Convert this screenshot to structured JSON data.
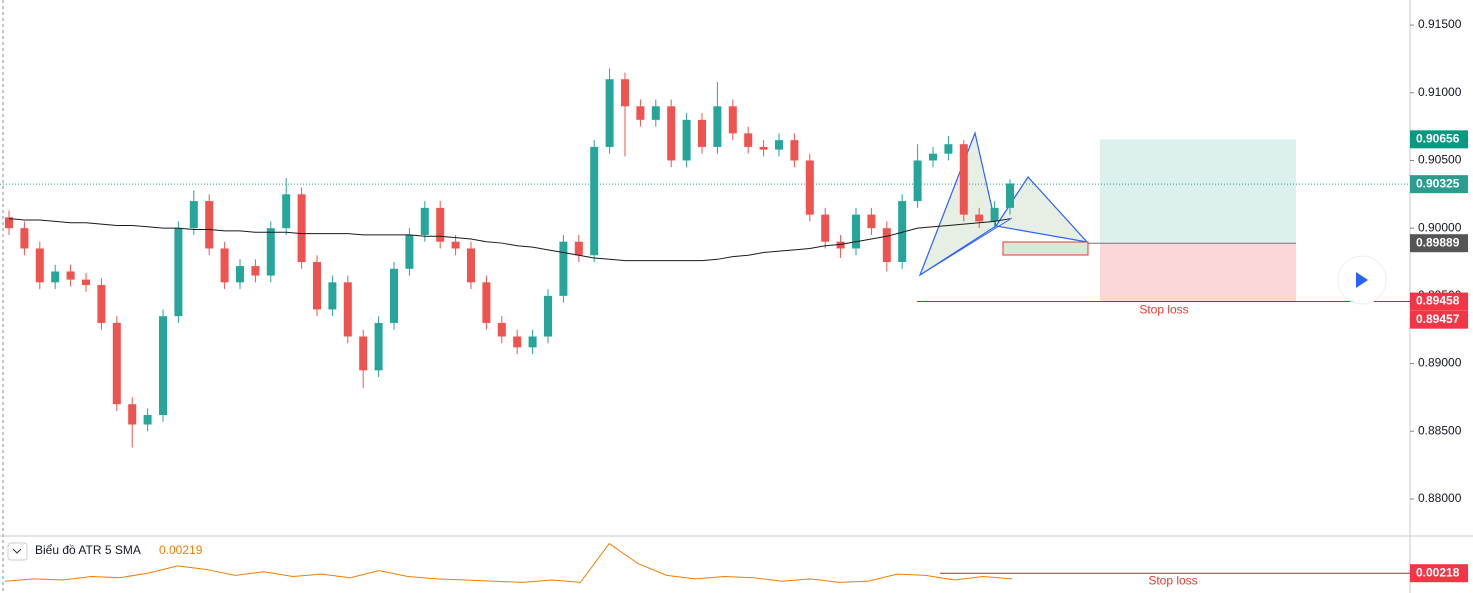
{
  "chart_data": {
    "type": "candlestick",
    "open": [
      0.9008,
      0.9,
      0.8985,
      0.896,
      0.8968,
      0.8962,
      0.8958,
      0.893,
      0.887,
      0.8855,
      0.8862,
      0.8935,
      0.9,
      0.902,
      0.8985,
      0.896,
      0.8972,
      0.8965,
      0.9,
      0.9025,
      0.8975,
      0.894,
      0.896,
      0.892,
      0.8895,
      0.893,
      0.897,
      0.8995,
      0.9015,
      0.899,
      0.8985,
      0.896,
      0.893,
      0.892,
      0.8912,
      0.892,
      0.895,
      0.899,
      0.898,
      0.906,
      0.911,
      0.909,
      0.908,
      0.909,
      0.905,
      0.908,
      0.906,
      0.909,
      0.907,
      0.906,
      0.9058,
      0.9065,
      0.905,
      0.901,
      0.899,
      0.8985,
      0.901,
      0.9,
      0.8975,
      0.902,
      0.905,
      0.9055,
      0.9062,
      0.901,
      0.9005,
      0.9015
    ],
    "high": [
      0.9013,
      0.9005,
      0.899,
      0.8973,
      0.8973,
      0.8967,
      0.8963,
      0.8935,
      0.8875,
      0.8867,
      0.894,
      0.9005,
      0.9028,
      0.9025,
      0.899,
      0.8977,
      0.8977,
      0.9005,
      0.9037,
      0.903,
      0.898,
      0.8965,
      0.8965,
      0.8925,
      0.8935,
      0.8975,
      0.9,
      0.902,
      0.902,
      0.8995,
      0.899,
      0.8965,
      0.8935,
      0.8925,
      0.8925,
      0.8955,
      0.8995,
      0.8995,
      0.9065,
      0.9118,
      0.9115,
      0.9095,
      0.9095,
      0.9095,
      0.9085,
      0.9085,
      0.9108,
      0.9095,
      0.9075,
      0.9065,
      0.907,
      0.907,
      0.9055,
      0.9015,
      0.8995,
      0.9015,
      0.9015,
      0.9005,
      0.9025,
      0.9062,
      0.906,
      0.9068,
      0.9065,
      0.9015,
      0.902,
      0.9036
    ],
    "low": [
      0.8995,
      0.898,
      0.8955,
      0.8955,
      0.8957,
      0.8953,
      0.8925,
      0.8865,
      0.8838,
      0.885,
      0.8857,
      0.893,
      0.8995,
      0.898,
      0.8955,
      0.8955,
      0.896,
      0.896,
      0.8995,
      0.897,
      0.8935,
      0.8935,
      0.8915,
      0.8882,
      0.889,
      0.8925,
      0.8965,
      0.899,
      0.8985,
      0.898,
      0.8955,
      0.8925,
      0.8915,
      0.8907,
      0.8907,
      0.8915,
      0.8945,
      0.8975,
      0.8975,
      0.9055,
      0.9053,
      0.9075,
      0.9075,
      0.9045,
      0.9045,
      0.9055,
      0.9055,
      0.9065,
      0.9055,
      0.9053,
      0.9053,
      0.9045,
      0.9005,
      0.8985,
      0.8978,
      0.898,
      0.8995,
      0.8968,
      0.897,
      0.9015,
      0.9045,
      0.905,
      0.9005,
      0.9,
      0.9,
      0.901
    ],
    "close": [
      0.9,
      0.8985,
      0.896,
      0.8968,
      0.8962,
      0.8958,
      0.893,
      0.887,
      0.8855,
      0.8862,
      0.8935,
      0.9,
      0.902,
      0.8985,
      0.896,
      0.8972,
      0.8965,
      0.9,
      0.9025,
      0.8975,
      0.894,
      0.896,
      0.892,
      0.8895,
      0.893,
      0.897,
      0.8995,
      0.9015,
      0.899,
      0.8985,
      0.896,
      0.893,
      0.892,
      0.8912,
      0.892,
      0.895,
      0.899,
      0.898,
      0.906,
      0.911,
      0.909,
      0.908,
      0.909,
      0.905,
      0.908,
      0.906,
      0.909,
      0.907,
      0.906,
      0.9058,
      0.9065,
      0.905,
      0.901,
      0.899,
      0.8985,
      0.901,
      0.9,
      0.8975,
      0.902,
      0.905,
      0.9055,
      0.9062,
      0.901,
      0.9005,
      0.9015,
      0.9033
    ],
    "sma": [
      0.9007,
      0.9006,
      0.9006,
      0.9005,
      0.9004,
      0.9004,
      0.9003,
      0.9002,
      0.9002,
      0.9001,
      0.9,
      0.9,
      0.8999,
      0.8999,
      0.8998,
      0.8998,
      0.8997,
      0.8997,
      0.8997,
      0.8996,
      0.8996,
      0.8996,
      0.8996,
      0.8995,
      0.8995,
      0.8995,
      0.8995,
      0.8994,
      0.8994,
      0.8993,
      0.8992,
      0.899,
      0.8989,
      0.8987,
      0.8986,
      0.8984,
      0.8982,
      0.898,
      0.8978,
      0.8977,
      0.8976,
      0.8976,
      0.8976,
      0.8976,
      0.8976,
      0.8976,
      0.8977,
      0.8979,
      0.898,
      0.8982,
      0.8983,
      0.8984,
      0.8985,
      0.8987,
      0.8988,
      0.899,
      0.8992,
      0.8994,
      0.8997,
      0.9,
      0.9001,
      0.9002,
      0.9003,
      0.9004,
      0.9005,
      0.9007
    ],
    "up_color": "#26a69a",
    "down_color": "#ef5350",
    "sma_color": "#1a1a1a",
    "ylim": [
      0.87734,
      0.91685
    ],
    "yticks": [
      {
        "value": 0.915,
        "label": "0.91500"
      },
      {
        "value": 0.91,
        "label": "0.91000"
      },
      {
        "value": 0.905,
        "label": "0.90500"
      },
      {
        "value": 0.9,
        "label": "0.90000"
      },
      {
        "value": 0.895,
        "label": "0.89500"
      },
      {
        "value": 0.89,
        "label": "0.89000"
      },
      {
        "value": 0.885,
        "label": "0.88500"
      },
      {
        "value": 0.88,
        "label": "0.88000"
      }
    ],
    "price_labels": [
      {
        "value": 0.90656,
        "label": "0.90656",
        "color": "#089981"
      },
      {
        "value": 0.90325,
        "label": "0.90325",
        "color": "#2a9d8f"
      },
      {
        "value": 0.89889,
        "label": "0.89889",
        "color": "#555555"
      },
      {
        "value": 0.89458,
        "label": "0.89458",
        "color": "#f23645"
      },
      {
        "value": 0.89457,
        "label": "0.89457",
        "color": "#f23645"
      }
    ],
    "take_profit": 0.90656,
    "entry": 0.89889,
    "stop": 0.89458,
    "last_price": 0.90325,
    "stop_label": "Stop loss",
    "atr": {
      "title": "Biểu đồ ATR 5 SMA",
      "current": "0.00219",
      "color": "#f57c00",
      "values": [
        0.0015,
        0.0017,
        0.0016,
        0.0019,
        0.0018,
        0.0022,
        0.0028,
        0.0025,
        0.002,
        0.0023,
        0.0019,
        0.0021,
        0.0018,
        0.0024,
        0.0019,
        0.0017,
        0.0016,
        0.0015,
        0.0014,
        0.0016,
        0.0014,
        0.0047,
        0.003,
        0.002,
        0.0017,
        0.0019,
        0.0018,
        0.0015,
        0.0017,
        0.0014,
        0.0015,
        0.0021,
        0.002,
        0.0016,
        0.0019,
        0.0017
      ],
      "ylim": [
        0.0005,
        0.005
      ],
      "level": {
        "value": 0.00218,
        "label": "0.00218"
      },
      "stop_label": "Stop loss"
    }
  }
}
